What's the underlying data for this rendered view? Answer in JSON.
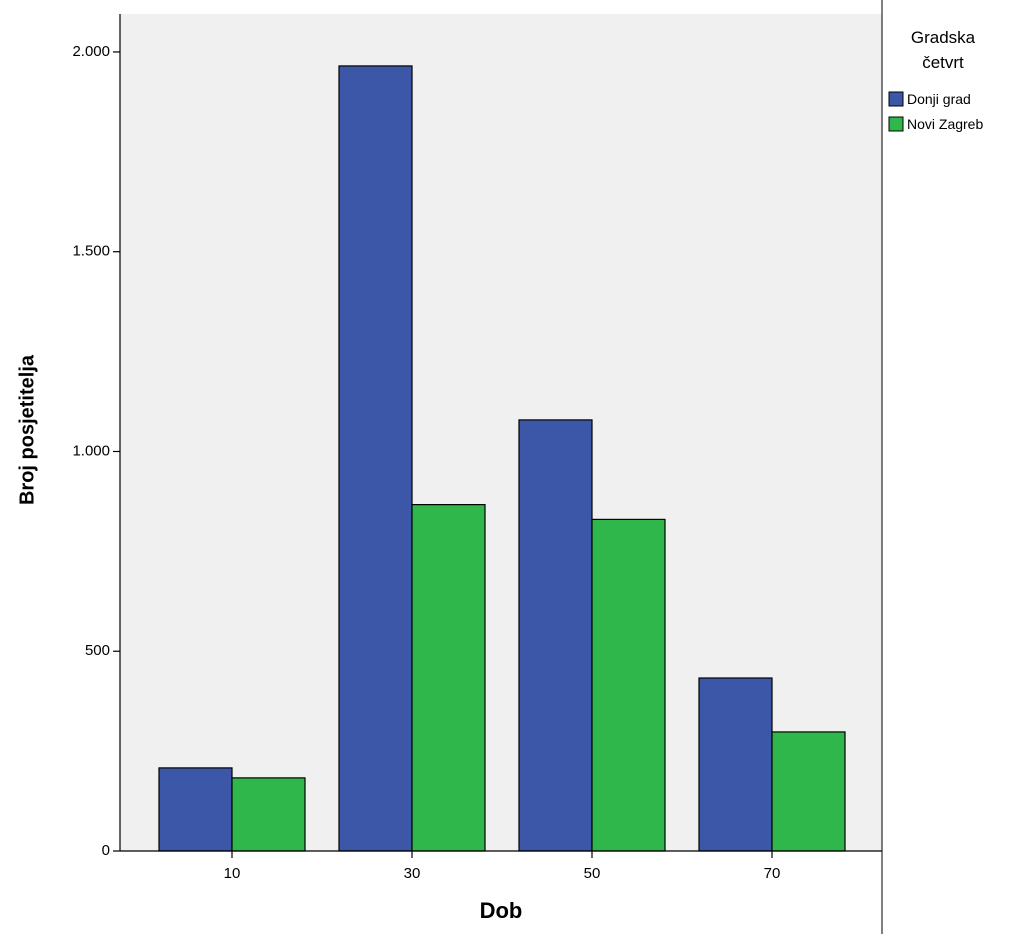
{
  "chart_data": {
    "type": "bar",
    "xlabel": "Dob",
    "ylabel": "Broj posjetitelja",
    "categories": [
      "10",
      "30",
      "50",
      "70"
    ],
    "series": [
      {
        "name": "Donji grad",
        "values": [
          208,
          1965,
          1079,
          433
        ]
      },
      {
        "name": "Novi Zagreb",
        "values": [
          183,
          867,
          830,
          298
        ]
      }
    ],
    "ylim": [
      0,
      2095
    ],
    "y_ticks": [
      {
        "value": 0,
        "label": "0"
      },
      {
        "value": 500,
        "label": "500"
      },
      {
        "value": 1000,
        "label": "1.000"
      },
      {
        "value": 1500,
        "label": "1.500"
      },
      {
        "value": 2000,
        "label": "2.000"
      }
    ],
    "legend": {
      "title_lines": [
        "Gradska",
        "četvrt"
      ],
      "placement": "right"
    },
    "colors": {
      "Donji grad": "#3d57a8",
      "Novi Zagreb": "#2fb74b",
      "plot_background": "#f0f0f0",
      "bar_outline": "#000000"
    },
    "grid": false
  }
}
